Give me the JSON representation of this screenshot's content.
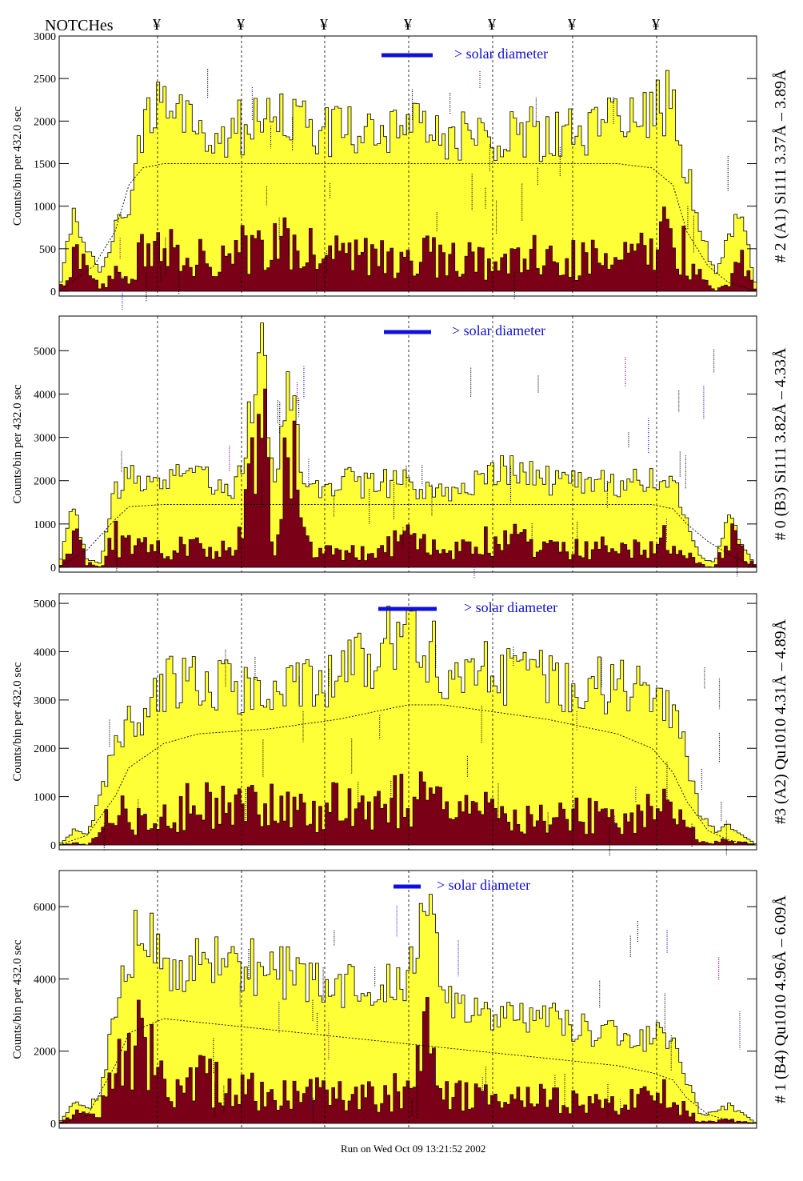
{
  "header": {
    "notch_label": "NOTCHes",
    "notch_symbol": "¥"
  },
  "footer": {
    "run_text": "Run on Wed Oct 09 13:21:52 2002"
  },
  "colors": {
    "bin_fill": "#ffff38",
    "bin_stroke": "#000000",
    "lower_fill": "#7a0018",
    "solar_bar": "#1010dd",
    "line_ids_blue": "#1a1acc",
    "line_ids_purple": "#800080"
  },
  "chart_data": [
    {
      "type": "area",
      "ylabel": "Counts/bin per   432.0 sec",
      "right_label": "# 2 (A1) Si111  3.37Å – 3.89Å",
      "solar_label": "> solar diameter",
      "ylim": [
        0,
        3000
      ],
      "yticks": [
        "0",
        "500",
        "1000",
        "1500",
        "2000",
        "2500",
        "3000"
      ],
      "ytick_values": [
        0,
        500,
        1000,
        1500,
        2000,
        2500,
        3000
      ],
      "upper": {
        "x": [
          0,
          0.02,
          0.04,
          0.06,
          0.08,
          0.1,
          0.12,
          0.14,
          0.16,
          0.18,
          0.2,
          0.25,
          0.3,
          0.35,
          0.4,
          0.45,
          0.5,
          0.55,
          0.6,
          0.65,
          0.7,
          0.75,
          0.8,
          0.85,
          0.88,
          0.9,
          0.92,
          0.94,
          0.96,
          0.98,
          1.0
        ],
        "y": [
          0,
          900,
          500,
          200,
          700,
          1000,
          1900,
          2100,
          2000,
          1950,
          2000,
          1900,
          2000,
          1950,
          1850,
          1850,
          1950,
          1850,
          1800,
          1850,
          1850,
          1800,
          2000,
          2100,
          2300,
          1400,
          700,
          200,
          700,
          850,
          0
        ]
      },
      "lower": {
        "x": [
          0,
          0.02,
          0.04,
          0.06,
          0.08,
          0.1,
          0.12,
          0.14,
          0.16,
          0.18,
          0.2,
          0.25,
          0.3,
          0.35,
          0.4,
          0.45,
          0.5,
          0.55,
          0.6,
          0.65,
          0.7,
          0.75,
          0.8,
          0.85,
          0.88,
          0.9,
          0.92,
          0.94,
          0.96,
          0.98,
          1.0
        ],
        "y": [
          0,
          500,
          250,
          50,
          250,
          100,
          550,
          650,
          450,
          500,
          400,
          450,
          550,
          500,
          400,
          450,
          400,
          400,
          350,
          350,
          450,
          350,
          450,
          500,
          700,
          400,
          150,
          0,
          150,
          300,
          0
        ]
      },
      "model": {
        "x": [
          0,
          0.05,
          0.08,
          0.1,
          0.12,
          0.15,
          0.2,
          0.3,
          0.4,
          0.5,
          0.6,
          0.7,
          0.8,
          0.85,
          0.88,
          0.9,
          0.93,
          0.96,
          1.0
        ],
        "y": [
          0,
          300,
          700,
          1250,
          1450,
          1500,
          1500,
          1500,
          1500,
          1500,
          1500,
          1500,
          1500,
          1450,
          1250,
          700,
          300,
          100,
          0
        ]
      }
    },
    {
      "type": "area",
      "ylabel": "Counts/bin per   432.0 sec",
      "right_label": "# 0 (B3) Si111  3.82Å – 4.33Å",
      "solar_label": "> solar diameter",
      "ylim": [
        0,
        5800
      ],
      "yticks": [
        "0",
        "1000",
        "2000",
        "3000",
        "4000",
        "5000"
      ],
      "ytick_values": [
        0,
        1000,
        2000,
        3000,
        4000,
        5000
      ],
      "upper": {
        "x": [
          0,
          0.02,
          0.04,
          0.06,
          0.08,
          0.1,
          0.15,
          0.2,
          0.25,
          0.27,
          0.29,
          0.31,
          0.33,
          0.35,
          0.37,
          0.4,
          0.45,
          0.5,
          0.55,
          0.6,
          0.65,
          0.7,
          0.75,
          0.8,
          0.85,
          0.88,
          0.9,
          0.92,
          0.94,
          0.96,
          1.0
        ],
        "y": [
          0,
          1500,
          200,
          100,
          1800,
          2000,
          2000,
          2100,
          1900,
          3000,
          5300,
          1800,
          4800,
          1700,
          1900,
          2000,
          1900,
          1950,
          1800,
          2000,
          2300,
          2000,
          1900,
          1900,
          1950,
          1950,
          1000,
          200,
          100,
          1200,
          0
        ]
      },
      "lower": {
        "x": [
          0,
          0.02,
          0.04,
          0.06,
          0.08,
          0.1,
          0.15,
          0.2,
          0.25,
          0.27,
          0.29,
          0.31,
          0.33,
          0.35,
          0.37,
          0.4,
          0.45,
          0.5,
          0.55,
          0.6,
          0.65,
          0.7,
          0.75,
          0.8,
          0.85,
          0.88,
          0.9,
          0.92,
          0.94,
          0.96,
          1.0
        ],
        "y": [
          0,
          900,
          100,
          0,
          700,
          500,
          400,
          500,
          400,
          1200,
          3900,
          600,
          3700,
          600,
          500,
          450,
          400,
          600,
          400,
          500,
          800,
          400,
          400,
          450,
          500,
          700,
          300,
          50,
          0,
          700,
          0
        ]
      },
      "model": {
        "x": [
          0,
          0.04,
          0.08,
          0.1,
          0.15,
          0.3,
          0.5,
          0.7,
          0.85,
          0.88,
          0.9,
          0.93,
          0.96,
          1.0
        ],
        "y": [
          0,
          400,
          1100,
          1400,
          1450,
          1450,
          1450,
          1450,
          1450,
          1350,
          1000,
          600,
          300,
          0
        ]
      }
    },
    {
      "type": "area",
      "ylabel": "Counts/bin per   432.0 sec",
      "right_label": "#3 (A2) Qu1010  4.31Å – 4.89Å",
      "solar_label": "> solar diameter",
      "ylim": [
        0,
        5200
      ],
      "yticks": [
        "0",
        "1000",
        "2000",
        "3000",
        "4000",
        "5000"
      ],
      "ytick_values": [
        0,
        1000,
        2000,
        3000,
        4000,
        5000
      ],
      "upper": {
        "x": [
          0,
          0.02,
          0.04,
          0.06,
          0.08,
          0.1,
          0.12,
          0.15,
          0.2,
          0.25,
          0.3,
          0.35,
          0.4,
          0.45,
          0.5,
          0.55,
          0.6,
          0.65,
          0.7,
          0.75,
          0.8,
          0.85,
          0.88,
          0.9,
          0.92,
          0.94,
          0.96,
          1.0
        ],
        "y": [
          0,
          300,
          200,
          1000,
          2200,
          2500,
          2600,
          3300,
          3400,
          3300,
          3300,
          3400,
          3500,
          3900,
          4600,
          3700,
          3600,
          3500,
          3400,
          3300,
          3300,
          3200,
          2800,
          1800,
          600,
          300,
          400,
          0
        ]
      },
      "lower": {
        "x": [
          0,
          0.02,
          0.04,
          0.06,
          0.08,
          0.1,
          0.12,
          0.15,
          0.2,
          0.25,
          0.3,
          0.35,
          0.4,
          0.45,
          0.5,
          0.55,
          0.6,
          0.65,
          0.7,
          0.75,
          0.8,
          0.85,
          0.88,
          0.9,
          0.92,
          0.94,
          0.96,
          1.0
        ],
        "y": [
          0,
          50,
          0,
          300,
          700,
          600,
          500,
          600,
          900,
          700,
          900,
          700,
          800,
          800,
          1000,
          800,
          700,
          600,
          700,
          600,
          600,
          700,
          800,
          400,
          100,
          50,
          100,
          0
        ]
      },
      "model": {
        "x": [
          0,
          0.04,
          0.08,
          0.1,
          0.15,
          0.2,
          0.3,
          0.4,
          0.5,
          0.55,
          0.6,
          0.7,
          0.8,
          0.85,
          0.88,
          0.9,
          0.93,
          0.96,
          1.0
        ],
        "y": [
          0,
          200,
          1000,
          1600,
          2100,
          2300,
          2400,
          2600,
          2900,
          2900,
          2800,
          2600,
          2300,
          2000,
          1500,
          900,
          300,
          100,
          0
        ]
      }
    },
    {
      "type": "area",
      "ylabel": "Counts/bin per   432.0 sec",
      "right_label": "# 1 (B4) Qu1010 4.96Å – 6.09Å",
      "solar_label": "> solar diameter",
      "ylim": [
        0,
        7000
      ],
      "yticks": [
        "0",
        "2000",
        "4000",
        "6000"
      ],
      "ytick_values": [
        0,
        2000,
        4000,
        6000
      ],
      "upper": {
        "x": [
          0,
          0.02,
          0.04,
          0.06,
          0.08,
          0.1,
          0.12,
          0.14,
          0.16,
          0.18,
          0.2,
          0.25,
          0.3,
          0.35,
          0.4,
          0.45,
          0.5,
          0.53,
          0.55,
          0.6,
          0.65,
          0.7,
          0.75,
          0.8,
          0.85,
          0.88,
          0.9,
          0.92,
          0.94,
          0.96,
          1.0
        ],
        "y": [
          0,
          600,
          400,
          800,
          3000,
          4500,
          5800,
          4800,
          4200,
          4100,
          4600,
          4500,
          4200,
          4100,
          3800,
          3700,
          4000,
          6200,
          3400,
          3200,
          3000,
          2900,
          2600,
          2500,
          2400,
          2300,
          1200,
          200,
          300,
          500,
          0
        ]
      },
      "lower": {
        "x": [
          0,
          0.02,
          0.04,
          0.06,
          0.08,
          0.1,
          0.12,
          0.14,
          0.16,
          0.18,
          0.2,
          0.25,
          0.3,
          0.35,
          0.4,
          0.45,
          0.5,
          0.53,
          0.55,
          0.6,
          0.65,
          0.7,
          0.75,
          0.8,
          0.85,
          0.88,
          0.9,
          0.92,
          0.94,
          0.96,
          1.0
        ],
        "y": [
          0,
          300,
          200,
          300,
          1500,
          1800,
          2600,
          1700,
          1000,
          900,
          1200,
          900,
          800,
          900,
          700,
          800,
          1000,
          2600,
          800,
          700,
          600,
          700,
          500,
          500,
          700,
          900,
          300,
          50,
          50,
          100,
          0
        ]
      },
      "model": {
        "x": [
          0,
          0.04,
          0.08,
          0.1,
          0.15,
          0.2,
          0.3,
          0.4,
          0.5,
          0.6,
          0.7,
          0.8,
          0.85,
          0.88,
          0.9,
          0.93,
          0.96,
          1.0
        ],
        "y": [
          0,
          200,
          1600,
          2500,
          2900,
          2800,
          2600,
          2400,
          2200,
          2000,
          1800,
          1600,
          1400,
          1200,
          700,
          250,
          80,
          0
        ]
      }
    }
  ]
}
